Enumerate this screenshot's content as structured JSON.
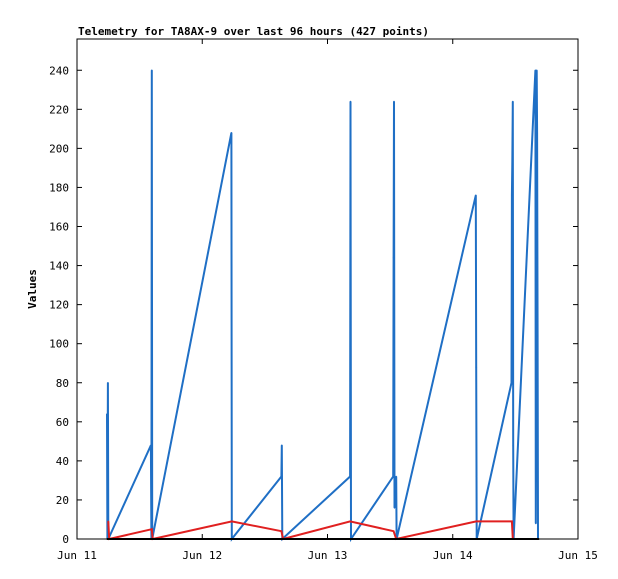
{
  "chart_data": {
    "type": "line",
    "title": "Telemetry for TA8AX-9 over last 96 hours (427 points)",
    "xlabel": "",
    "ylabel": "Values",
    "x_range": [
      "Jun 11 00:00",
      "Jun 15 00:00"
    ],
    "ylim": [
      0,
      256
    ],
    "yticks": [
      0,
      20,
      40,
      60,
      80,
      100,
      120,
      140,
      160,
      180,
      200,
      220,
      240
    ],
    "xticks": [
      "Jun 11",
      "Jun 12",
      "Jun 13",
      "Jun 14",
      "Jun 15"
    ],
    "grid": false,
    "legend": "none",
    "colors": {
      "series_blue": "#1f6fc5",
      "series_red": "#e02020",
      "baseline": "#000000",
      "axis": "#000000"
    },
    "series": [
      {
        "color": "#1f6fc5",
        "points": [
          {
            "x": "Jun 11 05:45",
            "y": 64
          },
          {
            "x": "Jun 11 05:50",
            "y": 0
          },
          {
            "x": "Jun 11 05:55",
            "y": 80
          },
          {
            "x": "Jun 11 06:00",
            "y": 0
          },
          {
            "x": "Jun 11 14:10",
            "y": 48
          },
          {
            "x": "Jun 11 14:15",
            "y": 0
          },
          {
            "x": "Jun 11 14:20",
            "y": 240
          },
          {
            "x": "Jun 11 14:25",
            "y": 0
          },
          {
            "x": "Jun 12 05:35",
            "y": 208
          },
          {
            "x": "Jun 12 05:40",
            "y": 0
          },
          {
            "x": "Jun 12 15:10",
            "y": 32
          },
          {
            "x": "Jun 12 15:15",
            "y": 48
          },
          {
            "x": "Jun 12 15:20",
            "y": 0
          },
          {
            "x": "Jun 13 04:20",
            "y": 32
          },
          {
            "x": "Jun 13 04:25",
            "y": 224
          },
          {
            "x": "Jun 13 04:30",
            "y": 0
          },
          {
            "x": "Jun 13 12:35",
            "y": 32
          },
          {
            "x": "Jun 13 12:40",
            "y": 144
          },
          {
            "x": "Jun 13 12:45",
            "y": 224
          },
          {
            "x": "Jun 13 12:50",
            "y": 16
          },
          {
            "x": "Jun 13 13:00",
            "y": 24
          },
          {
            "x": "Jun 13 13:10",
            "y": 32
          },
          {
            "x": "Jun 13 13:15",
            "y": 0
          },
          {
            "x": "Jun 14 04:25",
            "y": 176
          },
          {
            "x": "Jun 14 04:30",
            "y": 88
          },
          {
            "x": "Jun 14 04:35",
            "y": 0
          },
          {
            "x": "Jun 14 11:15",
            "y": 80
          },
          {
            "x": "Jun 14 11:20",
            "y": 176
          },
          {
            "x": "Jun 14 11:25",
            "y": 192
          },
          {
            "x": "Jun 14 11:30",
            "y": 224
          },
          {
            "x": "Jun 14 11:35",
            "y": 48
          },
          {
            "x": "Jun 14 11:40",
            "y": 0
          },
          {
            "x": "Jun 14 15:50",
            "y": 240
          },
          {
            "x": "Jun 14 15:55",
            "y": 8
          },
          {
            "x": "Jun 14 16:00",
            "y": 144
          },
          {
            "x": "Jun 14 16:05",
            "y": 240
          },
          {
            "x": "Jun 14 16:10",
            "y": 208
          },
          {
            "x": "Jun 14 16:15",
            "y": 104
          },
          {
            "x": "Jun 14 16:20",
            "y": 0
          }
        ]
      },
      {
        "color": "#e02020",
        "points": [
          {
            "x": "Jun 11 06:00",
            "y": 9
          },
          {
            "x": "Jun 11 06:10",
            "y": 0
          },
          {
            "x": "Jun 11 14:20",
            "y": 5
          },
          {
            "x": "Jun 11 14:30",
            "y": 0
          },
          {
            "x": "Jun 12 05:40",
            "y": 9
          },
          {
            "x": "Jun 12 15:10",
            "y": 4
          },
          {
            "x": "Jun 12 15:30",
            "y": 0
          },
          {
            "x": "Jun 13 04:20",
            "y": 9
          },
          {
            "x": "Jun 13 12:40",
            "y": 4
          },
          {
            "x": "Jun 13 13:10",
            "y": 0
          },
          {
            "x": "Jun 14 04:30",
            "y": 9
          },
          {
            "x": "Jun 14 11:20",
            "y": 9
          },
          {
            "x": "Jun 14 11:30",
            "y": 0
          },
          {
            "x": "Jun 14 16:20",
            "y": 0
          }
        ]
      },
      {
        "color": "#000000",
        "points": [
          {
            "x": "Jun 11 05:45",
            "y": 0
          },
          {
            "x": "Jun 14 16:30",
            "y": 0
          }
        ]
      }
    ]
  }
}
